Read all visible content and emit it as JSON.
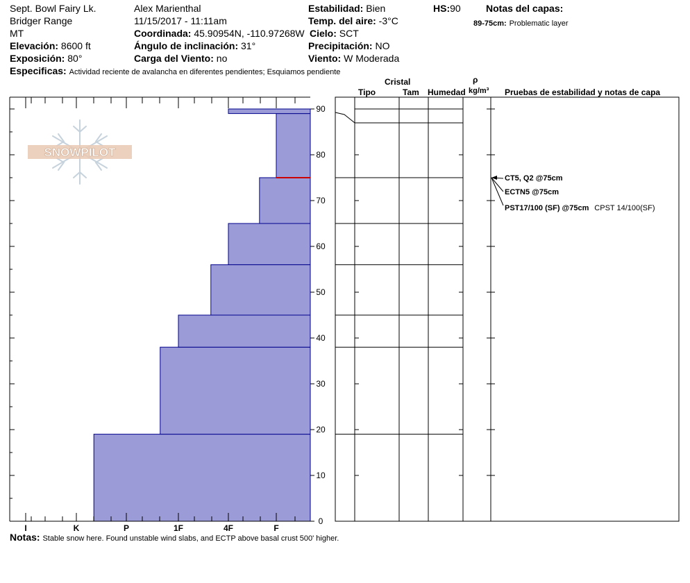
{
  "header": {
    "location": "Sept. Bowl Fairy Lk.",
    "range": "Bridger Range",
    "state": "MT",
    "elevation_label": "Elevación:",
    "elevation_value": "8600 ft",
    "aspect_label": "Exposición:",
    "aspect_value": "80°",
    "observer": "Alex Marienthal",
    "datetime": "11/15/2017 - 11:11am",
    "coord_label": "Coordinada:",
    "coord_value": "45.90954N, -110.97268W",
    "slope_label": "Ángulo de inclinación:",
    "slope_value": "31°",
    "windload_label": "Carga del Viento:",
    "windload_value": "no",
    "stability_label": "Estabilidad:",
    "stability_value": "Bien",
    "airtemp_label": "Temp. del aire:",
    "airtemp_value": "-3°C",
    "sky_label": "Cielo:",
    "sky_value": "SCT",
    "precip_label": "Precipitación:",
    "precip_value": "NO",
    "wind_label": "Viento:",
    "wind_value": "W Moderada",
    "hs_label": "HS:",
    "hs_value": "90",
    "layer_notes_label": "Notas del capas:",
    "layer_note_range": "89-75cm:",
    "layer_note_text": "Problematic layer",
    "specifics_label": "Especificas:",
    "specifics_value": "Actividad reciente de avalancha en diferentes pendientes;  Esquiamos pendiente",
    "notes_label": "Notas:",
    "notes_value": "Stable snow here. Found unstable wind slabs, and ECTP above basal crust 500' higher."
  },
  "logo": {
    "text": "SNOWPILOT"
  },
  "table": {
    "cristal_label": "Cristal",
    "tipo_label": "Tipo",
    "tam_label": "Tam",
    "humedad_label": "Humedad",
    "rho_label": "ρ",
    "density_unit": "kg/m³",
    "tests_label": "Pruebas de estabilidad y notas de capa"
  },
  "tests": [
    {
      "text": "CT5, Q2 @75cm",
      "depth": 75
    },
    {
      "text": "ECTN5 @75cm",
      "depth": 75
    },
    {
      "text": "PST17/100 (SF) @75cm",
      "depth": 75,
      "note": "CPST 14/100(SF)"
    }
  ],
  "colors": {
    "fill": "#9b9bd8",
    "edge": "#00008b",
    "weak": "#cc0000"
  },
  "chart_data": {
    "type": "bar",
    "orientation": "horizontal",
    "y_axis_label": "",
    "ylim": [
      0,
      90
    ],
    "y_ticks": [
      0,
      10,
      20,
      30,
      40,
      50,
      60,
      70,
      80,
      90
    ],
    "x_categories": [
      "I",
      "K",
      "P",
      "1F",
      "4F",
      "F"
    ],
    "hardness_scale_note": "",
    "layers": [
      {
        "bottom": 0,
        "top": 19,
        "hardness_index": 1.35
      },
      {
        "bottom": 19,
        "top": 38,
        "hardness_index": 2.65
      },
      {
        "bottom": 38,
        "top": 45,
        "hardness_index": 3.0
      },
      {
        "bottom": 45,
        "top": 56,
        "hardness_index": 3.65
      },
      {
        "bottom": 56,
        "top": 65,
        "hardness_index": 4.0
      },
      {
        "bottom": 65,
        "top": 75,
        "hardness_index": 4.65
      },
      {
        "bottom": 75,
        "top": 89,
        "hardness_index": 5.0
      },
      {
        "bottom": 89,
        "top": 90,
        "hardness_index": 4.0
      }
    ],
    "weak_layer_depth": 75,
    "row_boundaries": [
      19,
      38,
      45,
      56,
      65,
      75,
      87,
      90
    ]
  }
}
